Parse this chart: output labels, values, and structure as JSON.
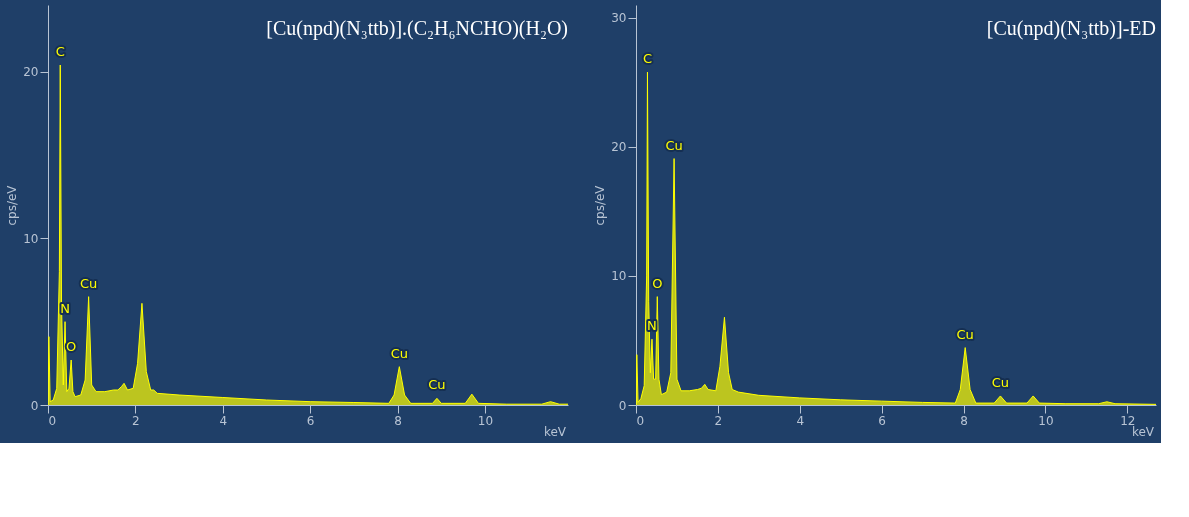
{
  "chart_data": [
    {
      "type": "area",
      "title": "[Cu(npd)(N₃ttb)].(C₂H₆NCHO)(H₂O)",
      "xlabel": "keV",
      "ylabel": "cps/eV",
      "xlim": [
        0,
        11.9
      ],
      "ylim": [
        0,
        24
      ],
      "xticks": [
        0,
        2,
        4,
        6,
        8,
        10
      ],
      "yticks": [
        0,
        10,
        20
      ],
      "grid": false,
      "series": [
        {
          "color": "#ffff00",
          "x": [
            0,
            0.02,
            0.05,
            0.12,
            0.2,
            0.26,
            0.28,
            0.31,
            0.35,
            0.39,
            0.43,
            0.48,
            0.53,
            0.57,
            0.62,
            0.75,
            0.85,
            0.93,
            1.0,
            1.1,
            1.3,
            1.5,
            1.6,
            1.68,
            1.74,
            1.82,
            1.95,
            2.05,
            2.15,
            2.25,
            2.35,
            2.42,
            2.5,
            3.0,
            4.0,
            5.0,
            6.0,
            7.0,
            7.8,
            7.92,
            8.04,
            8.16,
            8.3,
            8.8,
            8.9,
            9.0,
            9.55,
            9.7,
            9.85,
            10.5,
            11.3,
            11.5,
            11.7,
            11.9
          ],
          "values": [
            0,
            4.1,
            0.2,
            0.3,
            1.0,
            8,
            20.4,
            6,
            1.2,
            5.0,
            0.8,
            1.0,
            2.7,
            0.8,
            0.5,
            0.6,
            1.5,
            6.5,
            1.2,
            0.8,
            0.8,
            0.9,
            0.9,
            1.1,
            1.3,
            0.9,
            1.0,
            2.5,
            6.1,
            2.0,
            0.9,
            0.9,
            0.7,
            0.6,
            0.45,
            0.3,
            0.2,
            0.15,
            0.1,
            0.6,
            2.3,
            0.6,
            0.1,
            0.1,
            0.4,
            0.1,
            0.1,
            0.65,
            0.1,
            0.05,
            0.05,
            0.2,
            0.05,
            0.05
          ]
        }
      ],
      "annotations": [
        {
          "text": "C",
          "x": 0.28,
          "y": 20.4
        },
        {
          "text": "N",
          "x": 0.39,
          "y": 5.0
        },
        {
          "text": "O",
          "x": 0.53,
          "y": 2.7
        },
        {
          "text": "Cu",
          "x": 0.93,
          "y": 6.5
        },
        {
          "text": "Cu",
          "x": 8.04,
          "y": 2.3
        },
        {
          "text": "Cu",
          "x": 8.9,
          "y": 0.4
        }
      ]
    },
    {
      "type": "area",
      "title": "[Cu(npd)(N₃ttb)]-ED",
      "xlabel": "keV",
      "ylabel": "cps/eV",
      "xlim": [
        0,
        12.7
      ],
      "ylim": [
        0,
        31
      ],
      "xticks": [
        0,
        2,
        4,
        6,
        8,
        10,
        12
      ],
      "yticks": [
        0,
        10,
        20,
        30
      ],
      "grid": false,
      "series": [
        {
          "color": "#ffff00",
          "x": [
            0,
            0.02,
            0.05,
            0.12,
            0.2,
            0.26,
            0.28,
            0.31,
            0.35,
            0.39,
            0.43,
            0.48,
            0.52,
            0.56,
            0.62,
            0.75,
            0.85,
            0.93,
            1.0,
            1.1,
            1.3,
            1.5,
            1.6,
            1.68,
            1.76,
            1.95,
            2.05,
            2.16,
            2.26,
            2.35,
            2.5,
            3.0,
            4.0,
            5.0,
            6.0,
            7.0,
            7.8,
            7.92,
            8.04,
            8.16,
            8.3,
            8.75,
            8.9,
            9.05,
            9.55,
            9.7,
            9.85,
            10.5,
            11.3,
            11.5,
            11.7,
            12.7
          ],
          "values": [
            0,
            3.9,
            0.2,
            0.5,
            1.5,
            10,
            25.8,
            8,
            2.5,
            5.1,
            2.0,
            2.0,
            8.4,
            2.0,
            0.8,
            1.0,
            2.5,
            19.1,
            2.0,
            1.1,
            1.1,
            1.2,
            1.3,
            1.6,
            1.2,
            1.1,
            3.0,
            6.8,
            2.5,
            1.2,
            1.0,
            0.75,
            0.55,
            0.4,
            0.3,
            0.2,
            0.15,
            1.2,
            4.45,
            1.2,
            0.15,
            0.15,
            0.7,
            0.15,
            0.15,
            0.7,
            0.15,
            0.1,
            0.1,
            0.25,
            0.1,
            0.05
          ]
        }
      ],
      "annotations": [
        {
          "text": "C",
          "x": 0.28,
          "y": 25.8
        },
        {
          "text": "N",
          "x": 0.39,
          "y": 5.1
        },
        {
          "text": "O",
          "x": 0.52,
          "y": 8.4
        },
        {
          "text": "Cu",
          "x": 0.93,
          "y": 19.1
        },
        {
          "text": "Cu",
          "x": 8.04,
          "y": 4.45
        },
        {
          "text": "Cu",
          "x": 8.9,
          "y": 0.7
        }
      ]
    }
  ]
}
